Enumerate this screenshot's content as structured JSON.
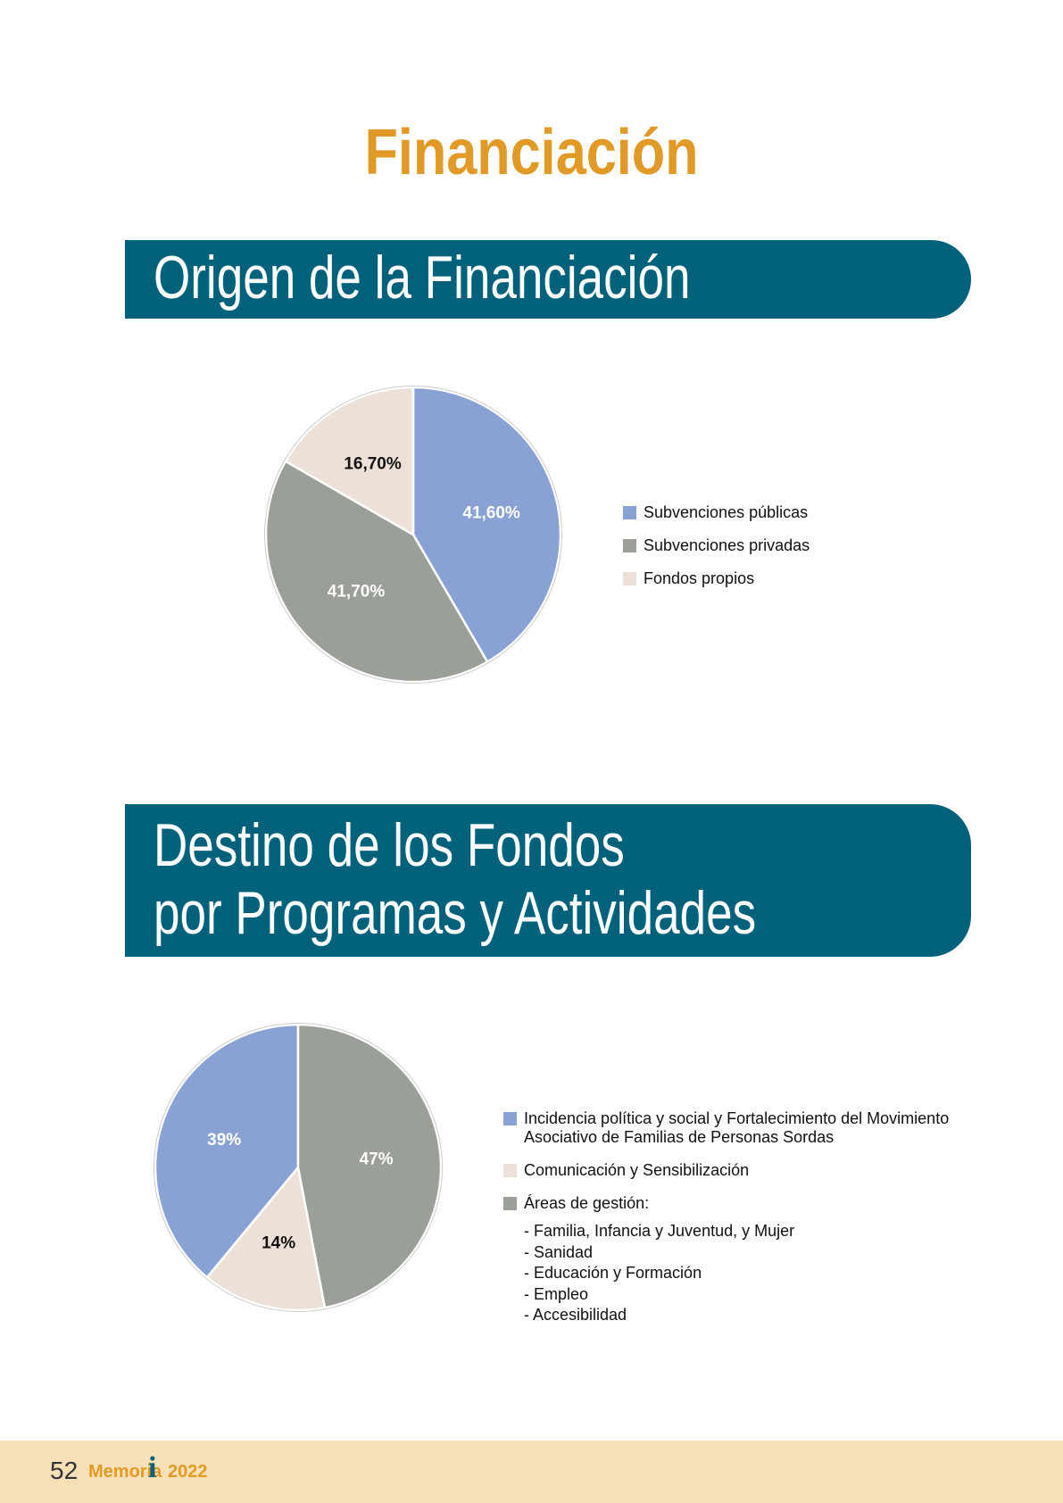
{
  "header": {
    "title": "Financiación"
  },
  "chart_data": [
    {
      "type": "pie",
      "title": [
        "Origen de la Financiación"
      ],
      "direction": "clockwise",
      "categories": [
        "Subvenciones públicas",
        "Subvenciones privadas",
        "Fondos propios"
      ],
      "values": [
        41.6,
        41.7,
        16.7
      ],
      "value_labels": [
        "41,60%",
        "41,70%",
        "16,70%"
      ],
      "colors": [
        "#8aa1d4",
        "#9aa098",
        "#ece0d8"
      ]
    },
    {
      "type": "pie",
      "title": [
        "Destino de los Fondos",
        "por Programas y Actividades"
      ],
      "direction": "counterclockwise",
      "categories": [
        "Incidencia política y social y Fortalecimiento del Movimiento Asociativo de Familias de Personas Sordas",
        "Comunicación y Sensibilización",
        "Áreas de gestión:"
      ],
      "values": [
        39,
        14,
        47
      ],
      "value_labels": [
        "39%",
        "14%",
        "47%"
      ],
      "colors": [
        "#8aa1d4",
        "#ece0d8",
        "#9aa098"
      ],
      "notes": [
        "- Familia, Infancia y Juventud, y Mujer",
        "- Sanidad",
        "- Educación y Formación",
        "- Empleo",
        "- Accesibilidad"
      ]
    }
  ],
  "footer": {
    "page_number": "52",
    "label": "Memoria",
    "year": "2022"
  }
}
